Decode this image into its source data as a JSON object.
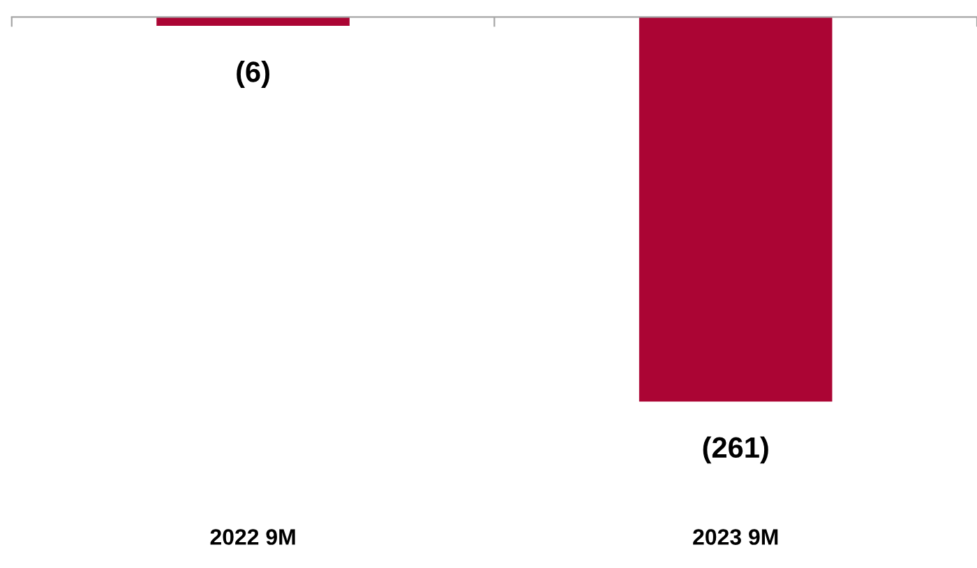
{
  "chart_data": {
    "type": "bar",
    "categories": [
      "2022 9M",
      "2023 9M"
    ],
    "values": [
      -6,
      -261
    ],
    "color": "#ab0534",
    "value_labels": [
      "(6)",
      "(261)"
    ],
    "grid": false,
    "legend": false
  }
}
